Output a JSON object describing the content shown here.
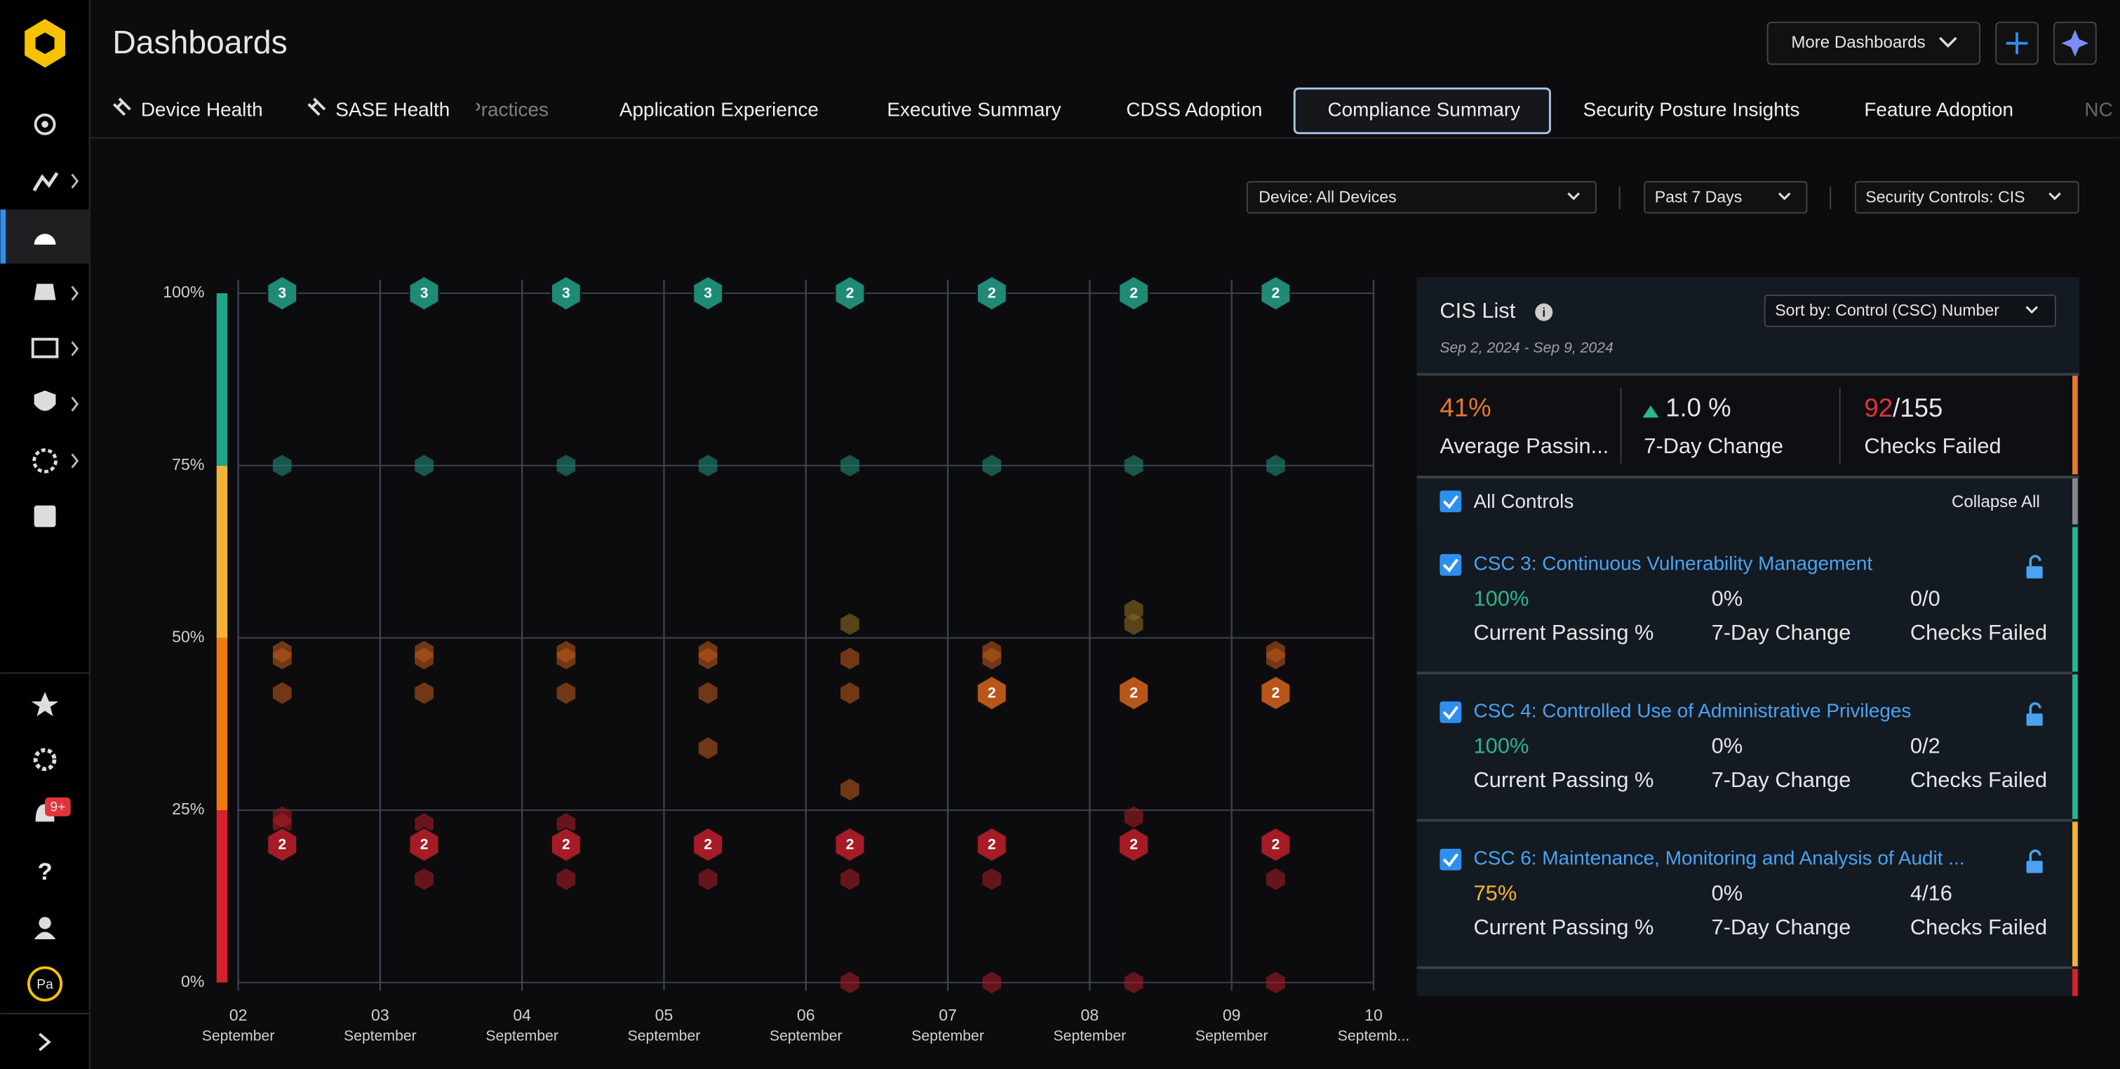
{
  "sidebar": {
    "badge": "9+",
    "avatar": "Pa"
  },
  "header": {
    "title": "Dashboards",
    "more": "More Dashboards"
  },
  "tabs": [
    "Device Health",
    "SASE Health",
    "Practices",
    "Application Experience",
    "Executive Summary",
    "CDSS Adoption",
    "Compliance Summary",
    "Security Posture Insights",
    "Feature Adoption",
    "NC"
  ],
  "filters": [
    "Device: All Devices",
    "Past 7 Days",
    "Security Controls: CIS"
  ],
  "chart_data": {
    "type": "scatter",
    "categories": [
      {
        "day": "02",
        "month": "September"
      },
      {
        "day": "03",
        "month": "September"
      },
      {
        "day": "04",
        "month": "September"
      },
      {
        "day": "05",
        "month": "September"
      },
      {
        "day": "06",
        "month": "September"
      },
      {
        "day": "07",
        "month": "September"
      },
      {
        "day": "08",
        "month": "September"
      },
      {
        "day": "09",
        "month": "September"
      },
      {
        "day": "10",
        "month": "Septemb..."
      }
    ],
    "ylim": [
      0,
      100
    ],
    "yticks": [
      {
        "value": 0,
        "label": "0%"
      },
      {
        "value": 25,
        "label": "25%"
      },
      {
        "value": 50,
        "label": "50%"
      },
      {
        "value": 75,
        "label": "75%"
      },
      {
        "value": 100,
        "label": "100%"
      }
    ],
    "grid": true,
    "bands": [
      {
        "from": 0,
        "to": 25,
        "color": "#d9202a"
      },
      {
        "from": 25,
        "to": 50,
        "color": "#f07a10"
      },
      {
        "from": 50,
        "to": 75,
        "color": "#f5b335"
      },
      {
        "from": 75,
        "to": 100,
        "color": "#1fa68a"
      }
    ],
    "series": [
      {
        "color": "#1f8a76",
        "x": [
          "02",
          "02",
          "03",
          "03",
          "04",
          "04",
          "05",
          "05",
          "06",
          "06",
          "07",
          "07",
          "08",
          "08",
          "09",
          "09"
        ],
        "values": [
          100,
          75,
          100,
          75,
          100,
          75,
          100,
          75,
          100,
          75,
          100,
          75,
          100,
          75,
          100,
          75
        ],
        "counts": [
          3,
          null,
          3,
          null,
          3,
          null,
          3,
          null,
          2,
          null,
          2,
          null,
          2,
          null,
          2,
          null
        ]
      },
      {
        "color": "#8a6a1f",
        "x": [
          "06",
          "08",
          "08"
        ],
        "values": [
          52,
          54,
          52
        ],
        "counts": [
          null,
          null,
          null
        ]
      },
      {
        "color": "#b8561a",
        "x": [
          "02",
          "02",
          "02",
          "03",
          "03",
          "03",
          "04",
          "04",
          "04",
          "05",
          "05",
          "05",
          "05",
          "06",
          "06",
          "06",
          "07",
          "07",
          "07",
          "08",
          "09",
          "09",
          "09"
        ],
        "values": [
          48,
          47,
          42,
          48,
          47,
          42,
          48,
          47,
          42,
          48,
          47,
          42,
          34,
          47,
          42,
          28,
          48,
          47,
          42,
          42,
          48,
          47,
          42
        ],
        "counts": [
          null,
          null,
          null,
          null,
          null,
          null,
          null,
          null,
          null,
          null,
          null,
          null,
          null,
          null,
          null,
          null,
          null,
          null,
          2,
          2,
          null,
          null,
          2
        ]
      },
      {
        "color": "#a51c26",
        "x": [
          "02",
          "02",
          "02",
          "03",
          "03",
          "03",
          "04",
          "04",
          "04",
          "05",
          "05",
          "06",
          "06",
          "06",
          "07",
          "07",
          "07",
          "08",
          "08",
          "08",
          "09",
          "09",
          "09"
        ],
        "values": [
          24,
          23,
          20,
          23,
          20,
          15,
          23,
          20,
          15,
          20,
          15,
          20,
          15,
          0,
          20,
          15,
          0,
          24,
          20,
          0,
          20,
          15,
          0
        ],
        "counts": [
          null,
          null,
          2,
          null,
          2,
          null,
          null,
          2,
          null,
          2,
          null,
          2,
          null,
          null,
          2,
          null,
          null,
          null,
          2,
          null,
          2,
          null,
          null
        ]
      }
    ]
  },
  "panel": {
    "title": "CIS List",
    "date_range": "Sep 2, 2024 - Sep 9, 2024",
    "sort": "Sort by: Control (CSC) Number",
    "summary": [
      {
        "value": "41%",
        "label": "Average Passin..."
      },
      {
        "value": "1.0 %",
        "label": "7-Day Change"
      },
      {
        "value": "92",
        "total": "/155",
        "label": "Checks Failed"
      }
    ],
    "all_controls": "All Controls",
    "collapse": "Collapse All",
    "metric_labels": [
      "Current Passing %",
      "7-Day Change",
      "Checks Failed"
    ],
    "controls": [
      {
        "name": "CSC 3: Continuous Vulnerability Management",
        "passing": "100%",
        "change": "0%",
        "failed": "0/0",
        "color": "#2bb589"
      },
      {
        "name": "CSC 4: Controlled Use of Administrative Privileges",
        "passing": "100%",
        "change": "0%",
        "failed": "0/2",
        "color": "#2bb589"
      },
      {
        "name": "CSC 6: Maintenance, Monitoring and Analysis of Audit ...",
        "passing": "75%",
        "change": "0%",
        "failed": "4/16",
        "color": "#f5b335"
      }
    ]
  }
}
